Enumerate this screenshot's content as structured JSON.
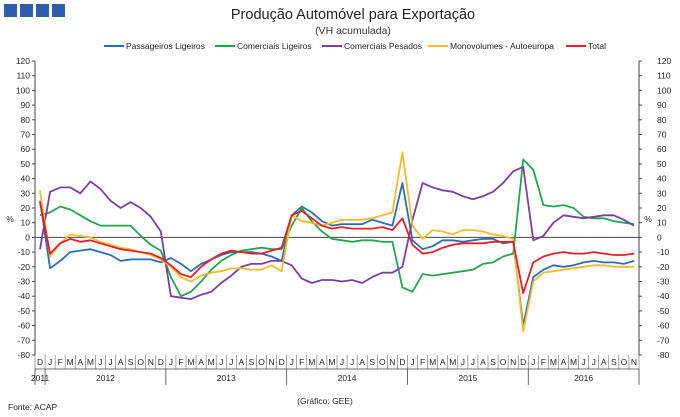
{
  "header": {
    "logo_icon": "acap-squares-logo-icon"
  },
  "source": "Fonte: ACAP",
  "credit": "(Gráfico: GEE)",
  "chart_data": {
    "type": "line",
    "title": "Produção Automóvel para Exportação",
    "subtitle": "(VH acumulada)",
    "ylabel_left": "%",
    "ylabel_right": "%",
    "ylim": [
      -80,
      120
    ],
    "ytick_step": 10,
    "grid": false,
    "legend_position": "top",
    "x_month_labels": [
      "D",
      "J",
      "F",
      "M",
      "A",
      "M",
      "J",
      "J",
      "A",
      "S",
      "O",
      "N",
      "D",
      "J",
      "F",
      "M",
      "A",
      "M",
      "J",
      "J",
      "A",
      "S",
      "O",
      "N",
      "D",
      "J",
      "F",
      "M",
      "A",
      "M",
      "J",
      "J",
      "A",
      "S",
      "O",
      "N",
      "D",
      "J",
      "F",
      "M",
      "A",
      "M",
      "J",
      "J",
      "A",
      "S",
      "O",
      "N",
      "D",
      "J",
      "F",
      "M",
      "A",
      "M",
      "J",
      "J",
      "A",
      "S",
      "O",
      "N"
    ],
    "year_labels": [
      {
        "label": "2011",
        "start": 0,
        "end": 0
      },
      {
        "label": "2012",
        "start": 1,
        "end": 12
      },
      {
        "label": "2013",
        "start": 13,
        "end": 24
      },
      {
        "label": "2014",
        "start": 25,
        "end": 36
      },
      {
        "label": "2015",
        "start": 37,
        "end": 48
      },
      {
        "label": "2016",
        "start": 49,
        "end": 59
      }
    ],
    "series": [
      {
        "name": "Passageiros Ligeiros",
        "color": "#2e6db4",
        "values": [
          25,
          -21,
          -16,
          -10,
          -9,
          -8,
          -10,
          -12,
          -16,
          -15,
          -15,
          -15,
          -17,
          -14,
          -18,
          -23,
          -18,
          -15,
          -12,
          -10,
          -10,
          -10,
          -11,
          -13,
          -16,
          15,
          21,
          17,
          11,
          8,
          9,
          9,
          9,
          12,
          10,
          8,
          37,
          -2,
          -8,
          -6,
          -2,
          -2,
          -3,
          -2,
          -1,
          -1,
          -4,
          -3,
          -60,
          -27,
          -22,
          -19,
          -20,
          -19,
          -17,
          -16,
          -17,
          -17,
          -18,
          -16
        ]
      },
      {
        "name": "Comerciais Ligeiros",
        "color": "#27a34f",
        "values": [
          15,
          17,
          21,
          19,
          15,
          11,
          8,
          8,
          8,
          8,
          1,
          -5,
          -9,
          -27,
          -40,
          -37,
          -30,
          -22,
          -16,
          -12,
          -9,
          -8,
          -7,
          -8,
          -8,
          8,
          20,
          11,
          4,
          -1,
          -2,
          -3,
          -2,
          -2,
          -3,
          -3,
          -34,
          -37,
          -25,
          -26,
          -25,
          -24,
          -23,
          -22,
          -18,
          -17,
          -13,
          -11,
          53,
          46,
          22,
          21,
          22,
          20,
          14,
          13,
          13,
          11,
          10,
          9
        ]
      },
      {
        "name": "Comerciais Pesados",
        "color": "#7c3fa0",
        "values": [
          -8,
          31,
          34,
          34,
          30,
          38,
          33,
          25,
          20,
          24,
          20,
          14,
          4,
          -40,
          -41,
          -42,
          -39,
          -37,
          -31,
          -26,
          -20,
          -18,
          -18,
          -16,
          -16,
          -19,
          -28,
          -31,
          -29,
          -29,
          -30,
          -29,
          -31,
          -27,
          -24,
          -24,
          -20,
          12,
          37,
          34,
          32,
          31,
          28,
          26,
          28,
          31,
          37,
          45,
          48,
          -2,
          1,
          10,
          15,
          14,
          13,
          14,
          15,
          15,
          12,
          8
        ]
      },
      {
        "name": "Monovolumes - Autoeuropa",
        "color": "#f2bd2f",
        "values": [
          32,
          -13,
          -4,
          2,
          1,
          0,
          -3,
          -5,
          -7,
          -8,
          -10,
          -12,
          -15,
          -20,
          -27,
          -30,
          -26,
          -24,
          -23,
          -21,
          -21,
          -22,
          -22,
          -19,
          -23,
          15,
          11,
          10,
          8,
          10,
          12,
          12,
          12,
          13,
          15,
          17,
          58,
          8,
          -1,
          5,
          4,
          2,
          5,
          5,
          4,
          2,
          1,
          -1,
          -64,
          -30,
          -24,
          -23,
          -22,
          -21,
          -20,
          -19,
          -19,
          -20,
          -20,
          -20
        ]
      },
      {
        "name": "Total",
        "color": "#e0202a",
        "values": [
          24,
          -11,
          -4,
          -1,
          -3,
          -2,
          -4,
          -6,
          -8,
          -9,
          -10,
          -11,
          -14,
          -19,
          -25,
          -27,
          -20,
          -15,
          -11,
          -9,
          -10,
          -11,
          -11,
          -9,
          -7,
          15,
          18,
          13,
          8,
          6,
          7,
          6,
          6,
          6,
          7,
          5,
          13,
          -5,
          -11,
          -10,
          -7,
          -5,
          -4,
          -4,
          -4,
          -3,
          -3,
          -3,
          -38,
          -17,
          -13,
          -11,
          -10,
          -11,
          -11,
          -10,
          -11,
          -12,
          -12,
          -11
        ]
      }
    ]
  }
}
